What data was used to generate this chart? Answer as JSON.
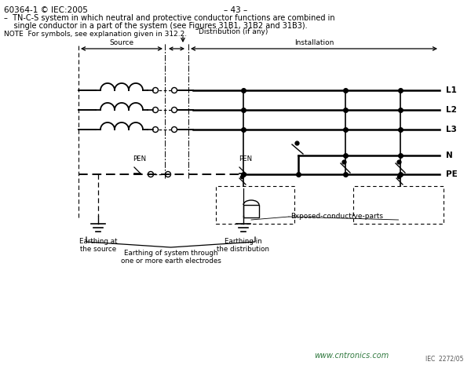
{
  "title_left": "60364-1 © IEC:2005",
  "title_center": "– 43 –",
  "desc_line1": "–  TN-C-S system in which neutral and protective conductor functions are combined in",
  "desc_line2": "    single conductor in a part of the system (see Figures 31B1, 31B2 and 31B3).",
  "note": "NOTE  For symbols, see explanation given in 312.2.",
  "watermark": "www.cntronics.com",
  "ref": "IEC  2272/05",
  "bg_color": "#ffffff",
  "lc": "#000000",
  "label_L1": "L1",
  "label_L2": "L2",
  "label_L3": "L3",
  "label_N": "N",
  "label_PE": "PE",
  "label_PEN1": "PEN",
  "label_PEN2": "PEN",
  "label_source": "Source",
  "label_installation": "Installation",
  "label_distribution": "Distribution (if any)",
  "label_earthing_source": "Earthing at\nthe source",
  "label_earthing_dist": "Earthing in\nthe distribution",
  "label_exposed": "Exposed-conductive-parts",
  "label_earthing_system": "Earthing of system through\none or more earth electrodes"
}
